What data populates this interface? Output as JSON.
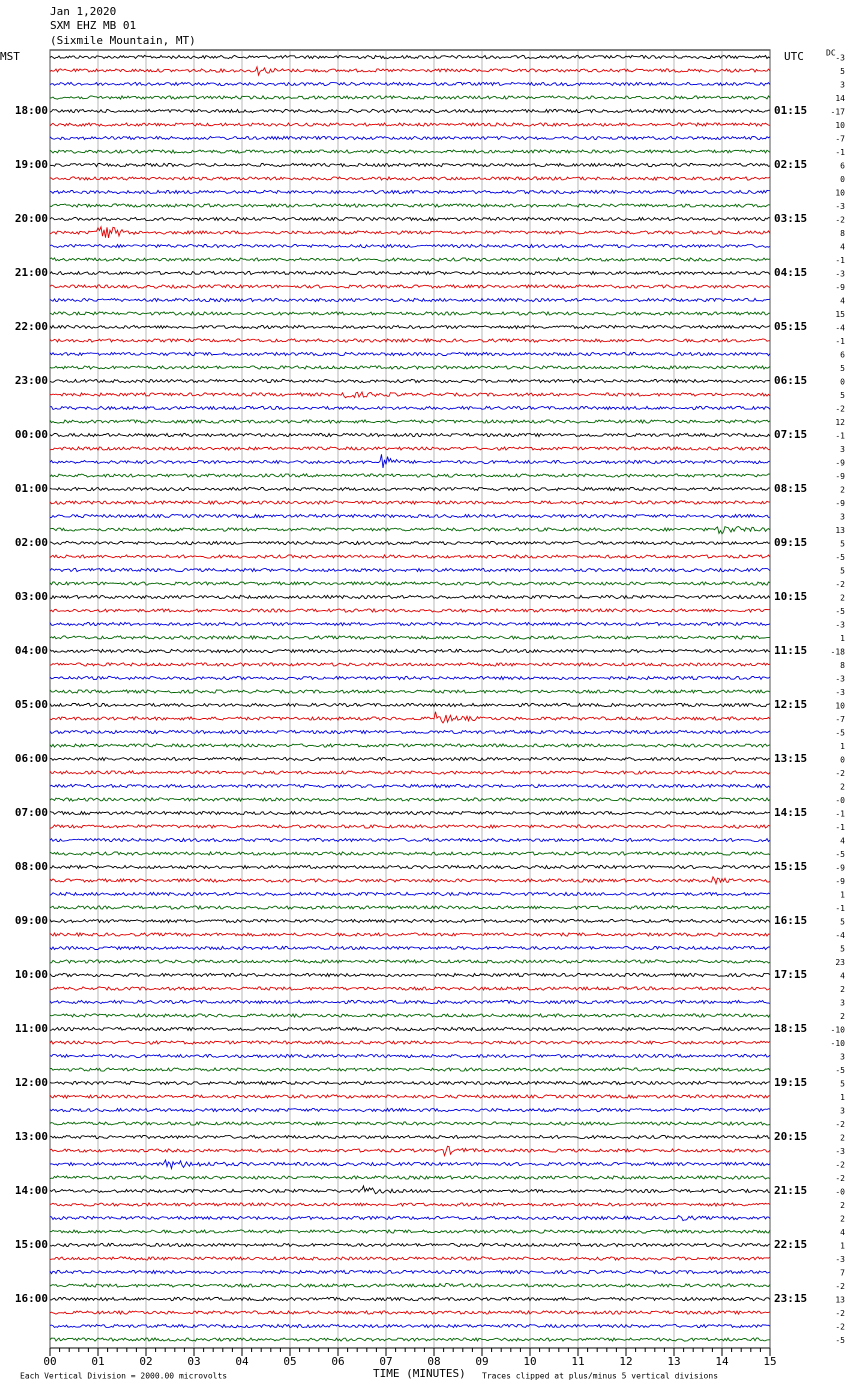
{
  "header": {
    "date": "Jan 1,2020",
    "station": "SXM EHZ MB 01",
    "location": "(Sixmile Mountain, MT)"
  },
  "left_zone": "MST",
  "right_zone": "UTC",
  "dc_title": "DC",
  "left_labels": [
    "18:00",
    "19:00",
    "20:00",
    "21:00",
    "22:00",
    "23:00",
    "00:00",
    "01:00",
    "02:00",
    "03:00",
    "04:00",
    "05:00",
    "06:00",
    "07:00",
    "08:00",
    "09:00",
    "10:00",
    "11:00",
    "12:00",
    "13:00",
    "14:00",
    "15:00",
    "16:00"
  ],
  "right_labels": [
    "01:15",
    "02:15",
    "03:15",
    "04:15",
    "05:15",
    "06:15",
    "07:15",
    "08:15",
    "09:15",
    "10:15",
    "11:15",
    "12:15",
    "13:15",
    "14:15",
    "15:15",
    "16:15",
    "17:15",
    "18:15",
    "19:15",
    "20:15",
    "21:15",
    "22:15",
    "23:15"
  ],
  "dc_offsets": [
    "-3",
    "5",
    "3",
    "14",
    "-17",
    "10",
    "-7",
    "-1",
    "6",
    "0",
    "10",
    "-3",
    "-2",
    "8",
    "4",
    "-1",
    "-3",
    "-9",
    "4",
    "15",
    "-4",
    "-1",
    "6",
    "5",
    "0",
    "5",
    "-2",
    "12",
    "-1",
    "3",
    "-9",
    "-9",
    "2",
    "-9",
    "3",
    "13",
    "5",
    "-5",
    "5",
    "-2",
    "2",
    "-5",
    "-3",
    "1",
    "-18",
    "8",
    "-3",
    "-3",
    "10",
    "-7",
    "-5",
    "1",
    "0",
    "-2",
    "2",
    "-0",
    "-1",
    "-1",
    "4",
    "-5",
    "-9",
    "-9",
    "1",
    "-1",
    "5",
    "-4",
    "5",
    "23",
    "4",
    "2",
    "3",
    "2",
    "-10",
    "-10",
    "3",
    "-5",
    "5",
    "1",
    "3",
    "-2",
    "2",
    "-3",
    "-2",
    "-2",
    "-0",
    "2",
    "2",
    "4",
    "1",
    "-3",
    "7",
    "-2",
    "13",
    "-2",
    "-2",
    "-5"
  ],
  "x_axis": {
    "label": "TIME (MINUTES)",
    "xlim": [
      0,
      15
    ],
    "xticks": [
      {
        "value": 0,
        "label": "00"
      },
      {
        "value": 1,
        "label": "01"
      },
      {
        "value": 2,
        "label": "02"
      },
      {
        "value": 3,
        "label": "03"
      },
      {
        "value": 4,
        "label": "04"
      },
      {
        "value": 5,
        "label": "05"
      },
      {
        "value": 6,
        "label": "06"
      },
      {
        "value": 7,
        "label": "07"
      },
      {
        "value": 8,
        "label": "08"
      },
      {
        "value": 9,
        "label": "09"
      },
      {
        "value": 10,
        "label": "10"
      },
      {
        "value": 11,
        "label": "11"
      },
      {
        "value": 12,
        "label": "12"
      },
      {
        "value": 13,
        "label": "13"
      },
      {
        "value": 14,
        "label": "14"
      },
      {
        "value": 15,
        "label": "15"
      }
    ]
  },
  "footer": {
    "scale_note": "Each Vertical Division = 2000.00 microvolts",
    "clip_note": "Traces clipped at plus/minus 5 vertical divisions"
  }
}
